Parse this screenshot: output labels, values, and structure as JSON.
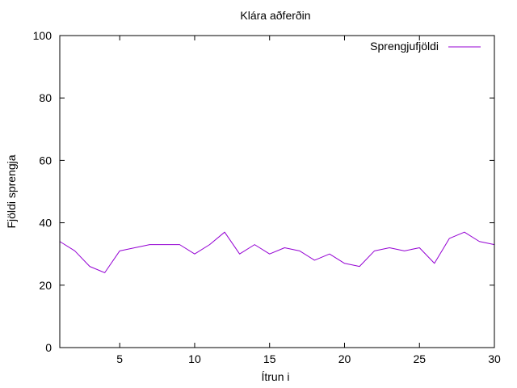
{
  "chart_data": {
    "type": "line",
    "title": "Klára aðferðin",
    "xlabel": "Ítrun i",
    "ylabel": "Fjöldi sprengja",
    "xlim": [
      1,
      30
    ],
    "ylim": [
      0,
      100
    ],
    "xticks": [
      5,
      10,
      15,
      20,
      25,
      30
    ],
    "yticks": [
      0,
      20,
      40,
      60,
      80,
      100
    ],
    "grid": false,
    "legend_position": "top-right",
    "series": [
      {
        "name": "Sprengjufjöldi",
        "color": "#9400d3",
        "x": [
          1,
          2,
          3,
          4,
          5,
          6,
          7,
          8,
          9,
          10,
          11,
          12,
          13,
          14,
          15,
          16,
          17,
          18,
          19,
          20,
          21,
          22,
          23,
          24,
          25,
          26,
          27,
          28,
          29,
          30
        ],
        "y": [
          34,
          31,
          26,
          24,
          31,
          32,
          33,
          33,
          33,
          30,
          33,
          37,
          30,
          33,
          30,
          32,
          31,
          28,
          30,
          27,
          26,
          31,
          32,
          31,
          32,
          27,
          35,
          37,
          34,
          33
        ]
      }
    ]
  }
}
